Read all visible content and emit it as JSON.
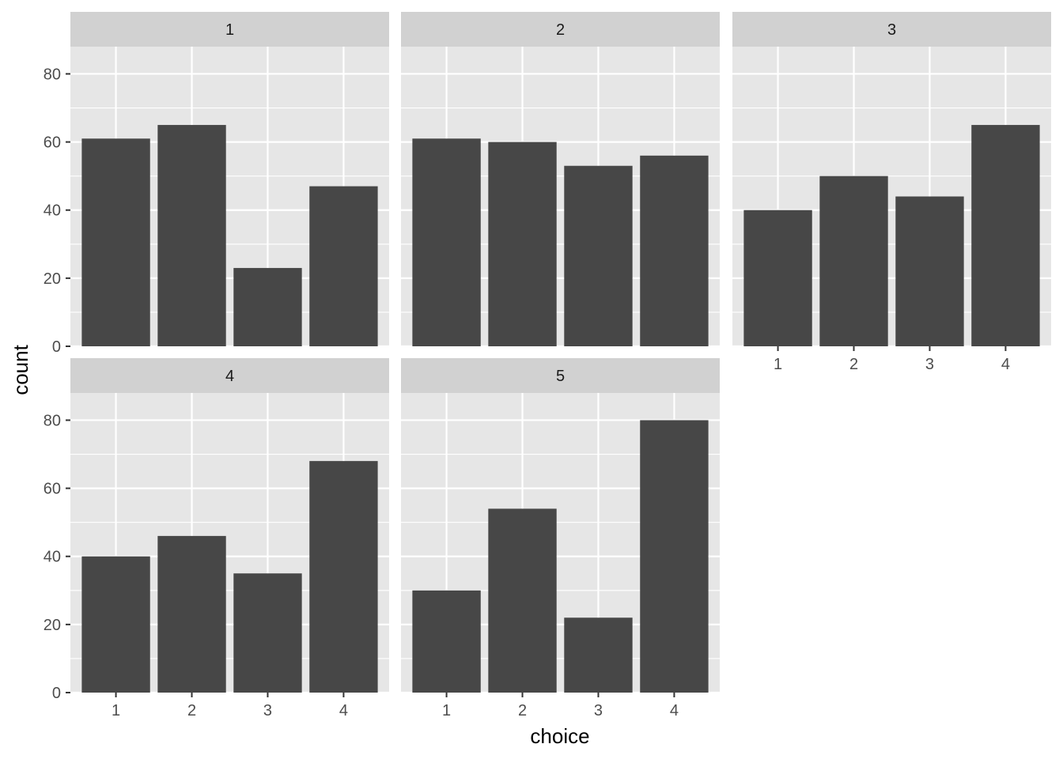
{
  "chart_data": {
    "type": "bar",
    "facet_layout": "wrap",
    "xlabel": "choice",
    "ylabel": "count",
    "ylim": [
      0,
      88
    ],
    "y_ticks": [
      0,
      20,
      40,
      60,
      80
    ],
    "grid": true,
    "categories": [
      "1",
      "2",
      "3",
      "4"
    ],
    "colors": {
      "bar": "#474747",
      "panel_bg": "#e6e6e6",
      "strip_bg": "#d1d1d1",
      "grid": "#ffffff"
    },
    "facets": [
      {
        "name": "1",
        "values": [
          61,
          65,
          23,
          47
        ]
      },
      {
        "name": "2",
        "values": [
          61,
          60,
          53,
          56
        ]
      },
      {
        "name": "3",
        "values": [
          40,
          50,
          44,
          65
        ]
      },
      {
        "name": "4",
        "values": [
          40,
          46,
          35,
          68
        ]
      },
      {
        "name": "5",
        "values": [
          30,
          54,
          22,
          80
        ]
      }
    ]
  }
}
